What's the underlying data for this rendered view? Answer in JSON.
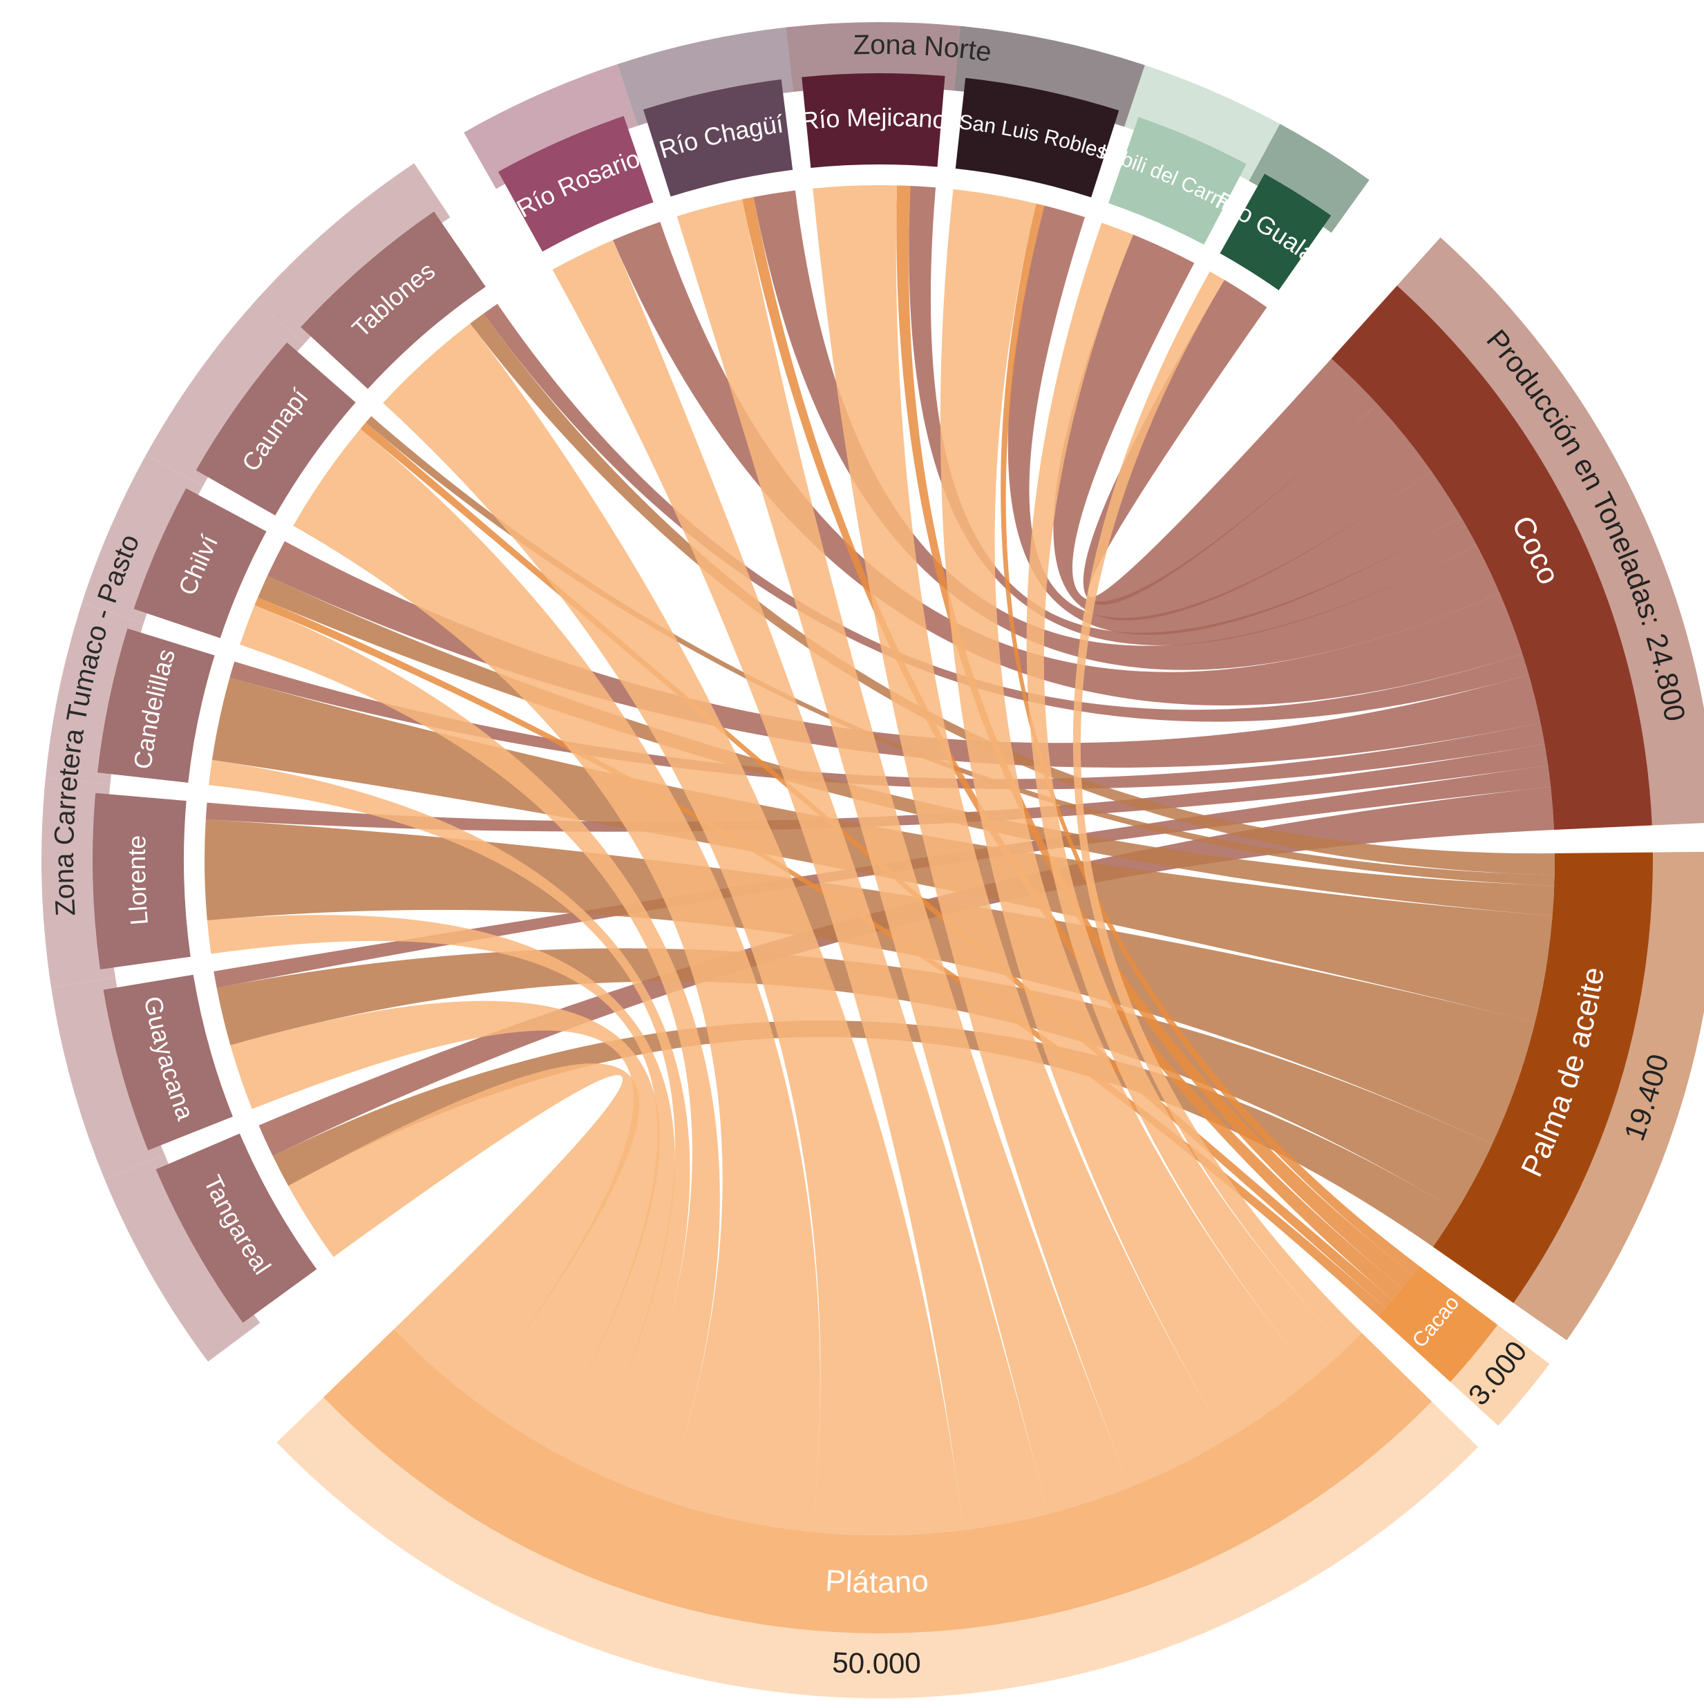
{
  "chart_data": {
    "type": "chord",
    "total_label": "Producción en Toneladas:",
    "products": [
      {
        "name": "Coco",
        "value": 24800,
        "value_label": "24.800",
        "color": "#8e3a28",
        "band_color": "#c8a095",
        "chord_color": "#a9665b"
      },
      {
        "name": "Palma de aceite",
        "value": 19400,
        "value_label": "19.400",
        "color": "#a2480f",
        "band_color": "#d5a585",
        "chord_color": "#bb7a4c"
      },
      {
        "name": "Cacao",
        "value": 3000,
        "value_label": "3.000",
        "color": "#f0984a",
        "band_color": "#fbd5b0",
        "chord_color": "#e88c3e"
      },
      {
        "name": "Plátano",
        "value": 50000,
        "value_label": "50.000",
        "color": "#f8b77c",
        "band_color": "#fddcbd",
        "chord_color": "#f8b77c"
      }
    ],
    "groups": [
      {
        "name": "Zona Carretera Tumaco - Pasto",
        "locations": [
          {
            "name": "Tangareal",
            "color": "#a17070",
            "band_color": "#d4b8b9",
            "flows": [
              2000,
              2000,
              0,
              5000
            ]
          },
          {
            "name": "Guayacana",
            "color": "#a17070",
            "band_color": "#d4b8b9",
            "flows": [
              1000,
              3500,
              0,
              4000
            ]
          },
          {
            "name": "Llorente",
            "color": "#a17070",
            "band_color": "#d4b8b9",
            "flows": [
              1000,
              6000,
              0,
              2000
            ]
          },
          {
            "name": "Candelillas",
            "color": "#a17070",
            "band_color": "#d4b8b9",
            "flows": [
              1000,
              5000,
              0,
              1500
            ]
          },
          {
            "name": "Chilví",
            "color": "#a17070",
            "band_color": "#d4b8b9",
            "flows": [
              2300,
              1400,
              500,
              2500
            ]
          },
          {
            "name": "Caunapí",
            "color": "#a17070",
            "band_color": "#d4b8b9",
            "flows": [
              0,
              500,
              500,
              7000
            ]
          },
          {
            "name": "Tablones",
            "color": "#a17070",
            "band_color": "#d4b8b9",
            "flows": [
              1000,
              1000,
              0,
              7000
            ]
          }
        ]
      },
      {
        "name": "Zona Norte",
        "locations": [
          {
            "name": "Río Rosario",
            "color": "#984b6a",
            "band_color": "#cba8b3",
            "flows": [
              3000,
              0,
              0,
              4000
            ]
          },
          {
            "name": "Río Chagüí",
            "color": "#624659",
            "band_color": "#b0a1aa",
            "flows": [
              2500,
              0,
              700,
              4000
            ]
          },
          {
            "name": "Río Mejicano",
            "color": "#5a1f32",
            "band_color": "#ad9096",
            "flows": [
              1500,
              0,
              800,
              5000
            ]
          },
          {
            "name": "San Luis Robles",
            "color": "#2c1a20",
            "band_color": "#938a8d",
            "flows": [
              2500,
              0,
              500,
              5000
            ]
          },
          {
            "name": "Imbili del Carmen",
            "color": "#a8c9b3",
            "band_color": "#d4e3d7",
            "flows": [
              4000,
              0,
              0,
              2000
            ]
          },
          {
            "name": "Río Gualajo",
            "color": "#235a40",
            "band_color": "#92aa9c",
            "flows": [
              3000,
              0,
              0,
              1000
            ]
          }
        ]
      }
    ]
  }
}
